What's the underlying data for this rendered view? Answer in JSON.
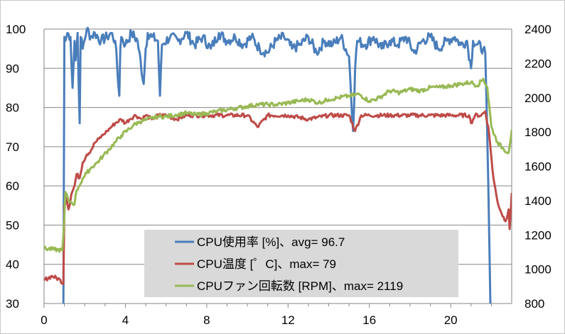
{
  "chart_data": {
    "type": "line",
    "x_ticks": [
      "0",
      "4",
      "8",
      "12",
      "16",
      "20"
    ],
    "y_left_ticks": [
      "30",
      "40",
      "50",
      "60",
      "70",
      "80",
      "90",
      "100"
    ],
    "y_right_ticks": [
      "800",
      "1000",
      "1200",
      "1400",
      "1600",
      "1800",
      "2000",
      "2200",
      "2400"
    ],
    "xlim": [
      0,
      23
    ],
    "ylim_left": [
      30,
      100
    ],
    "ylim_right": [
      800,
      2400
    ],
    "grid": "horizontal",
    "legend_placement": "bottom-center",
    "colors": {
      "cpu": "#4a7ebb",
      "temp": "#be4b48",
      "fan": "#98b954",
      "legend_bg": "#d9d9d9",
      "grid": "#868686"
    },
    "series": [
      {
        "name": "CPU使用率 [%]、avg= 96.7",
        "axis": "left",
        "color": "#4a7ebb",
        "x": [
          0.0,
          0.95,
          1.0,
          1.05,
          1.15,
          1.3,
          1.4,
          1.5,
          1.55,
          1.65,
          1.75,
          1.8,
          1.9,
          2.1,
          2.3,
          2.5,
          2.8,
          3.1,
          3.3,
          3.5,
          3.7,
          3.75,
          3.8,
          4.0,
          4.3,
          4.6,
          4.9,
          5.0,
          5.1,
          5.3,
          5.6,
          5.7,
          5.8,
          6.2,
          6.6,
          7.0,
          7.4,
          7.8,
          8.2,
          8.6,
          9.0,
          9.4,
          9.8,
          10.2,
          10.6,
          11.0,
          11.4,
          11.8,
          12.2,
          12.6,
          13.0,
          13.4,
          13.8,
          14.2,
          14.6,
          15.0,
          15.2,
          15.3,
          15.4,
          15.8,
          16.2,
          16.6,
          17.0,
          17.4,
          17.8,
          18.2,
          18.6,
          19.0,
          19.4,
          19.8,
          20.2,
          20.5,
          20.8,
          21.0,
          21.1,
          21.3,
          21.6,
          21.7,
          21.85,
          21.95
        ],
        "values": [
          null,
          30,
          98,
          97,
          99,
          98,
          85,
          97,
          92,
          99,
          76,
          98,
          95,
          100,
          98,
          99,
          97,
          98,
          99,
          97,
          83,
          95,
          98,
          96,
          99,
          97,
          86,
          95,
          99,
          98,
          97,
          83,
          96,
          98,
          97,
          99,
          96,
          98,
          95,
          99,
          97,
          98,
          96,
          98,
          95,
          94,
          97,
          98,
          95,
          96,
          98,
          94,
          97,
          96,
          98,
          93,
          74,
          90,
          97,
          96,
          98,
          95,
          97,
          96,
          98,
          94,
          97,
          98,
          95,
          97,
          98,
          96,
          97,
          90,
          97,
          96,
          95,
          94,
          60,
          30
        ]
      },
      {
        "name": "CPU温度 [゜C]、max= 79",
        "axis": "left",
        "color": "#be4b48",
        "x": [
          0.0,
          0.4,
          0.8,
          0.95,
          1.0,
          1.1,
          1.2,
          1.35,
          1.5,
          1.6,
          1.75,
          1.9,
          2.1,
          2.3,
          2.5,
          2.7,
          2.9,
          3.1,
          3.3,
          3.5,
          3.8,
          4.0,
          4.2,
          4.5,
          4.8,
          5.0,
          5.3,
          5.6,
          6.0,
          6.5,
          7.0,
          7.5,
          8.0,
          9.0,
          10.0,
          10.5,
          11.0,
          12.0,
          13.0,
          14.0,
          15.0,
          15.3,
          15.6,
          16.0,
          17.0,
          18.0,
          19.0,
          20.0,
          20.9,
          21.0,
          21.2,
          21.5,
          21.7,
          21.85,
          21.95,
          22.1,
          22.3,
          22.5,
          22.7,
          22.85,
          22.9,
          23.0
        ],
        "values": [
          36,
          37,
          36,
          35,
          55,
          57,
          54,
          58,
          60,
          63,
          62,
          66,
          68,
          69,
          71,
          72,
          73,
          74,
          75,
          76,
          77,
          76,
          77,
          78,
          77,
          78,
          77,
          78,
          78,
          77,
          78,
          78,
          78,
          78,
          78,
          75,
          78,
          78,
          77,
          78,
          78,
          74,
          78,
          78,
          78,
          78,
          78,
          78,
          78,
          76,
          78,
          78,
          79,
          75,
          70,
          62,
          56,
          53,
          51,
          54,
          49,
          58
        ]
      },
      {
        "name": "CPUファン回転数 [RPM]、max= 2119",
        "axis": "right",
        "color": "#98b954",
        "x": [
          0.0,
          0.5,
          0.9,
          0.95,
          1.0,
          1.05,
          1.2,
          1.35,
          1.5,
          1.6,
          1.7,
          1.8,
          1.9,
          2.1,
          2.3,
          2.6,
          2.9,
          3.2,
          3.5,
          3.8,
          4.1,
          4.4,
          4.7,
          5.0,
          5.3,
          5.6,
          6.0,
          6.5,
          7.0,
          7.5,
          8.0,
          8.5,
          9.0,
          9.5,
          10.0,
          10.5,
          11.0,
          11.5,
          12.0,
          12.5,
          13.0,
          13.5,
          14.0,
          14.5,
          15.0,
          15.5,
          16.0,
          16.5,
          17.0,
          17.5,
          18.0,
          18.5,
          19.0,
          19.5,
          20.0,
          20.5,
          21.0,
          21.3,
          21.6,
          21.8,
          22.0,
          22.3,
          22.6,
          22.85,
          23.0
        ],
        "values": [
          1120,
          1115,
          1110,
          1200,
          1310,
          1450,
          1400,
          1390,
          1380,
          1460,
          1480,
          1500,
          1530,
          1560,
          1590,
          1620,
          1660,
          1700,
          1740,
          1780,
          1810,
          1840,
          1860,
          1870,
          1880,
          1890,
          1890,
          1900,
          1910,
          1900,
          1910,
          1920,
          1930,
          1940,
          1950,
          1960,
          1960,
          1960,
          1970,
          1980,
          1990,
          1970,
          1990,
          2000,
          2010,
          2020,
          1980,
          2000,
          2040,
          2030,
          2050,
          2040,
          2060,
          2060,
          2070,
          2080,
          2090,
          2070,
          2110,
          2060,
          1830,
          1740,
          1700,
          1680,
          1810
        ]
      }
    ]
  }
}
